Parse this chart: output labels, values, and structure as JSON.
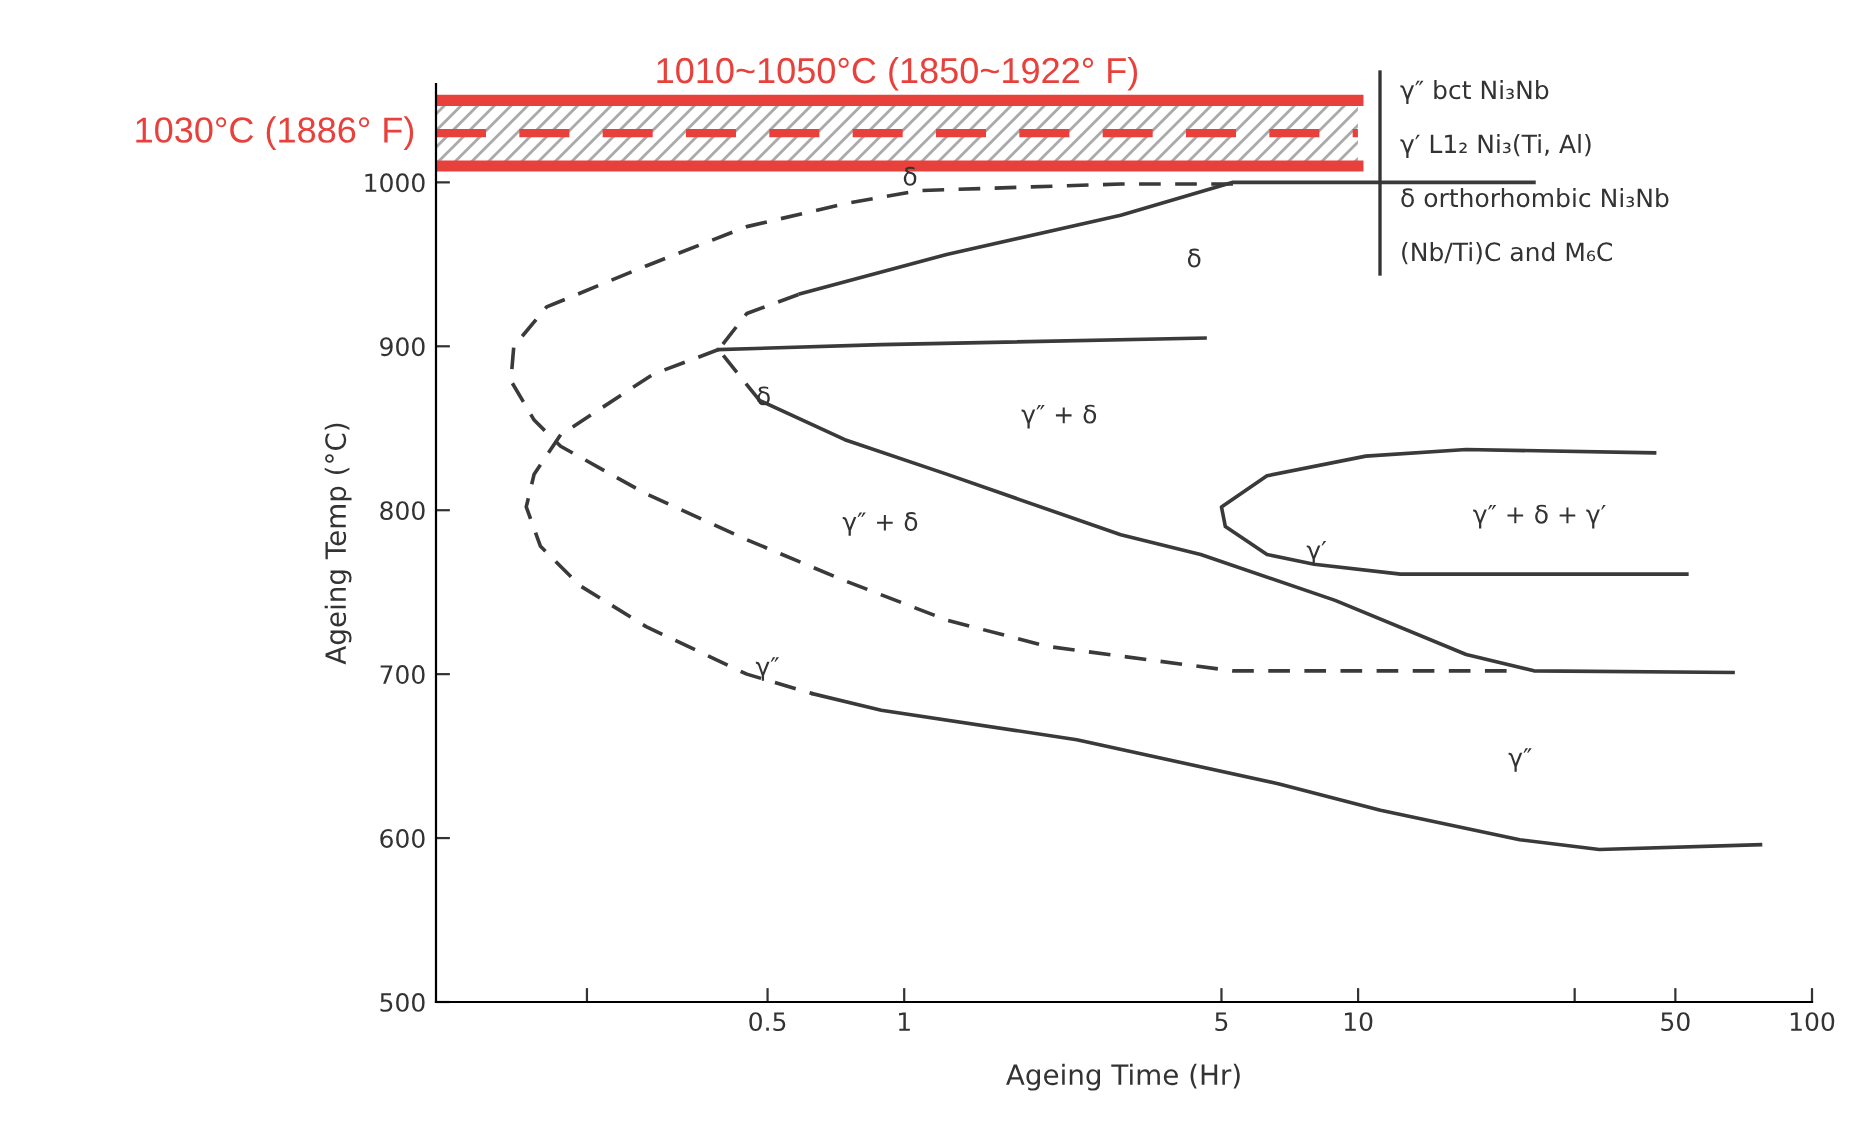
{
  "chart_data": {
    "type": "line",
    "xlabel": "Ageing Time (Hr)",
    "ylabel": "Ageing Temp (°C)",
    "log": "x",
    "xlim": [
      0.093,
      100
    ],
    "xticks": [
      {
        "value": 0.2,
        "label": null
      },
      {
        "value": 0.5,
        "label": "0.5"
      },
      1,
      5,
      10,
      {
        "value": 30,
        "label": null
      },
      50,
      100
    ],
    "ylim": [
      500,
      1060
    ],
    "yticks": [
      500,
      600,
      700,
      800,
      900,
      1000
    ],
    "grid": false,
    "legend": false,
    "series": [
      {
        "color": "#3a3a3a",
        "line_style": "dashed",
        "x": [
          5.3,
          3.0,
          1.08,
          0.74,
          0.45,
          0.27,
          0.163,
          0.138,
          0.136,
          0.153,
          0.175,
          0.27,
          0.45,
          0.74,
          1.24,
          2.06,
          3.0,
          5.3,
          22.7
        ],
        "values": [
          999,
          999,
          995,
          987,
          973,
          949,
          924,
          900,
          879,
          855,
          839,
          810,
          782,
          757,
          733,
          717,
          711,
          702,
          702
        ]
      },
      {
        "color": "#3a3a3a",
        "line_style": "dashed",
        "x": [
          0.48,
          0.39,
          0.45,
          0.59
        ],
        "values": [
          867,
          898,
          920,
          932
        ]
      },
      {
        "color": "#3a3a3a",
        "line_style": "solid",
        "x": [
          0.59,
          1.24,
          3.0,
          5.3,
          24.4
        ],
        "values": [
          932,
          956,
          980,
          1000,
          1000
        ]
      },
      {
        "color": "#3a3a3a",
        "line_style": "solid",
        "x": [
          0.48,
          0.74,
          1.24,
          3.0,
          4.5,
          8.9,
          17.3,
          24.4,
          67
        ],
        "values": [
          867,
          843,
          822,
          785,
          773,
          745,
          712,
          702,
          701
        ]
      },
      {
        "color": "#3a3a3a",
        "line_style": "solid",
        "x": [
          0.39,
          0.89,
          4.6
        ],
        "values": [
          898,
          901,
          905
        ]
      },
      {
        "color": "#3a3a3a",
        "line_style": "dashed",
        "x": [
          0.39,
          0.28,
          0.175,
          0.153,
          0.147,
          0.158,
          0.193,
          0.27,
          0.45,
          0.63
        ],
        "values": [
          898,
          883,
          846,
          822,
          802,
          778,
          754,
          729,
          700,
          688
        ]
      },
      {
        "color": "#3a3a3a",
        "line_style": "solid",
        "x": [
          0.63,
          0.89,
          2.4,
          6.7,
          11.2,
          22.7,
          34,
          77
        ],
        "values": [
          688,
          678,
          660,
          633,
          617,
          599,
          593,
          596
        ]
      },
      {
        "color": "#3a3a3a",
        "line_style": "solid",
        "x": [
          45,
          17.3,
          10.4,
          6.3,
          5.0,
          5.1,
          6.3,
          8.0,
          12.4,
          53
        ],
        "values": [
          835,
          837,
          833,
          821,
          802,
          790,
          773,
          767,
          761,
          761
        ]
      }
    ],
    "bands": [
      {
        "axis": "y",
        "from": 1010,
        "to": 1050,
        "label": "1010~1050°C (1850~1922° F)",
        "color": "#e8413c"
      }
    ],
    "ref_lines": [
      {
        "axis": "y",
        "value": 1030,
        "label": "1030°C (1886° F)",
        "color": "#e8413c",
        "line_style": "dashed"
      }
    ],
    "annotations": [
      {
        "text": "δ",
        "x": 1.03,
        "y": 995
      },
      {
        "text": "δ",
        "x": 0.49,
        "y": 861
      },
      {
        "text": "γ′",
        "x": 8.1,
        "y": 767
      },
      {
        "text": "γ″",
        "x": 0.5,
        "y": 696
      },
      "δ",
      "γ″ + δ",
      "γ″ + δ",
      "γ″ + δ + γ′",
      "γ″",
      "γ″ bct Ni₃Nb",
      "γ′ L1₂ Ni₃(Ti, Al)",
      "δ orthorhombic Ni₃Nb",
      "(Nb/Ti)C and M₆C"
    ]
  }
}
